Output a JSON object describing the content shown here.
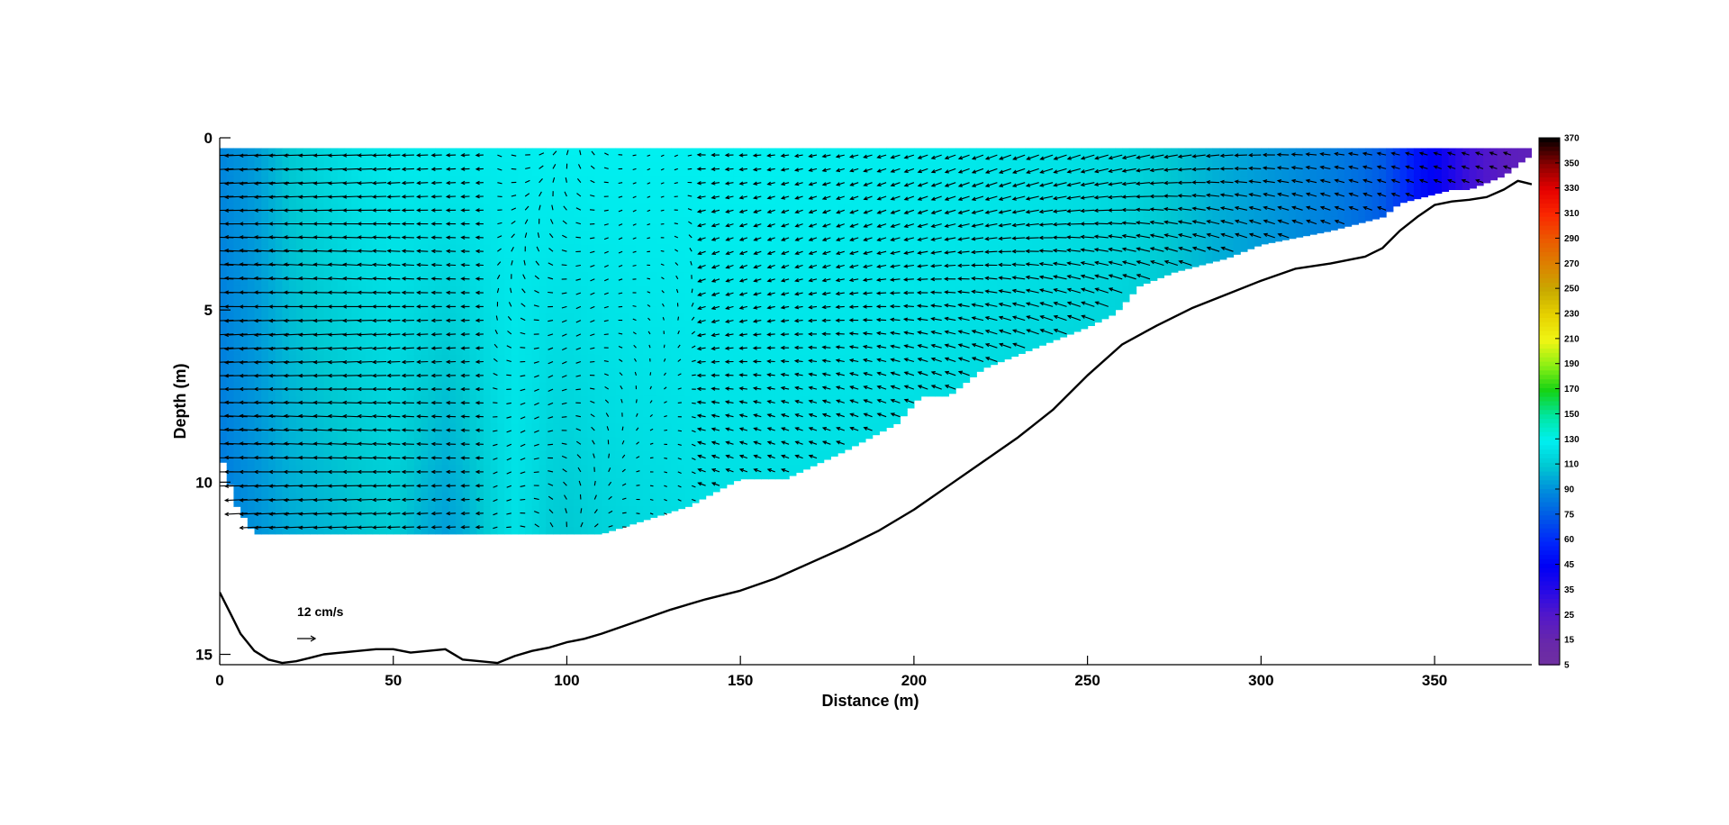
{
  "chart_data": {
    "type": "heatmap",
    "title": "",
    "xlabel": "Distance (m)",
    "ylabel": "Depth (m)",
    "xlim": [
      0,
      378
    ],
    "ylim": [
      15.3,
      0
    ],
    "y_inverted": true,
    "grid": false,
    "x_ticks": [
      "0",
      "50",
      "100",
      "150",
      "200",
      "250",
      "300",
      "350"
    ],
    "y_ticks": [
      "0",
      "5",
      "10",
      "15"
    ],
    "x_tick_values": [
      0,
      50,
      100,
      150,
      200,
      250,
      300,
      350
    ],
    "y_tick_values": [
      0,
      5,
      10,
      15
    ],
    "colorbar": {
      "labels": [
        "370",
        "350",
        "330",
        "310",
        "290",
        "270",
        "250",
        "230",
        "210",
        "190",
        "170",
        "150",
        "130",
        "110",
        "90",
        "75",
        "60",
        "45",
        "35",
        "25",
        "15",
        "5"
      ],
      "colormap": "jet-like: purple (low) → blue → cyan → green → yellow → orange → red → black (high)"
    },
    "reference_arrow_label": "12 cm/s",
    "reference_arrow_speed_cm_s": 12,
    "bottom_profile": {
      "x": [
        0,
        3,
        6,
        10,
        14,
        18,
        22,
        26,
        30,
        35,
        40,
        45,
        50,
        55,
        60,
        65,
        70,
        75,
        80,
        85,
        90,
        95,
        100,
        105,
        110,
        120,
        130,
        140,
        150,
        160,
        170,
        180,
        190,
        200,
        210,
        220,
        230,
        240,
        250,
        260,
        270,
        280,
        290,
        300,
        310,
        320,
        330,
        335,
        340,
        345,
        350,
        355,
        360,
        365,
        370,
        374,
        376,
        378
      ],
      "depth": [
        13.2,
        13.8,
        14.4,
        14.9,
        15.15,
        15.25,
        15.2,
        15.1,
        15.0,
        14.95,
        14.9,
        14.85,
        14.85,
        14.95,
        14.9,
        14.85,
        15.15,
        15.2,
        15.25,
        15.05,
        14.9,
        14.8,
        14.65,
        14.55,
        14.4,
        14.05,
        13.7,
        13.4,
        13.15,
        12.8,
        12.35,
        11.9,
        11.4,
        10.8,
        10.1,
        9.4,
        8.7,
        7.9,
        6.9,
        6.0,
        5.45,
        4.95,
        4.55,
        4.15,
        3.8,
        3.65,
        3.45,
        3.2,
        2.7,
        2.3,
        1.95,
        1.85,
        1.8,
        1.72,
        1.5,
        1.25,
        1.3,
        1.35
      ]
    },
    "measured_region": {
      "top_depth": 0.3,
      "lower_edge": {
        "x": [
          0,
          5,
          10,
          20,
          80,
          110,
          135,
          150,
          163,
          180,
          195,
          202,
          210,
          220,
          230,
          240,
          250,
          258,
          265,
          275,
          290,
          300,
          320,
          335,
          340,
          355,
          360,
          370,
          375,
          378
        ],
        "depth": [
          9.1,
          10.7,
          11.5,
          11.5,
          11.5,
          11.5,
          10.7,
          9.9,
          9.9,
          9.1,
          8.3,
          7.5,
          7.5,
          6.7,
          6.3,
          5.9,
          5.5,
          5.1,
          4.3,
          3.9,
          3.5,
          3.1,
          2.7,
          2.3,
          1.9,
          1.5,
          1.5,
          1.1,
          0.7,
          0.5
        ]
      }
    },
    "value_field_columns": {
      "x": [
        0,
        10,
        20,
        30,
        40,
        50,
        55,
        60,
        65,
        70,
        75,
        80,
        85,
        90,
        95,
        100,
        110,
        120,
        130,
        140,
        160,
        180,
        200,
        220,
        240,
        260,
        270,
        280,
        290,
        300,
        310,
        320,
        330,
        335,
        340,
        345,
        350,
        360,
        370,
        378
      ],
      "surface_value": [
        88,
        95,
        110,
        118,
        124,
        127,
        128,
        128,
        128,
        128,
        128,
        128,
        128,
        129,
        130,
        130,
        130,
        130,
        130,
        130,
        130,
        129,
        128,
        126,
        124,
        118,
        112,
        106,
        100,
        95,
        90,
        86,
        80,
        75,
        65,
        52,
        45,
        30,
        22,
        20
      ],
      "bottom_value": [
        85,
        92,
        100,
        104,
        108,
        112,
        106,
        100,
        96,
        100,
        108,
        116,
        122,
        118,
        112,
        110,
        115,
        118,
        120,
        122,
        122,
        122,
        122,
        120,
        118,
        116,
        112,
        106,
        100,
        95,
        90,
        86,
        80,
        75,
        65,
        52,
        45,
        30,
        22,
        20
      ]
    }
  }
}
